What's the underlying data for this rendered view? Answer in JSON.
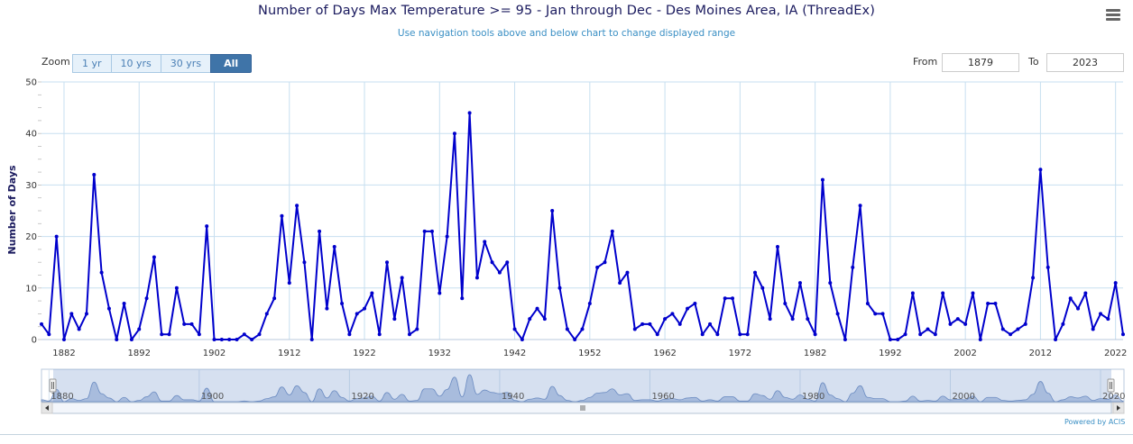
{
  "title": "Number of Days Max Temperature >= 95 - Jan through Dec - Des Moines Area, IA (ThreadEx)",
  "subtitle": "Use navigation tools above and below chart to change displayed range",
  "menu_icon": "hamburger-menu-icon",
  "zoom": {
    "label": "Zoom",
    "buttons": [
      "1 yr",
      "10 yrs",
      "30 yrs",
      "All"
    ],
    "selected": "All"
  },
  "range": {
    "from_label": "From",
    "from_value": "1879",
    "to_label": "To",
    "to_value": "2023"
  },
  "powered_by": "Powered by ACIS",
  "colors": {
    "series": "#0000cc",
    "navigator_fill": "#a9bcdc",
    "grid": "#c7dff0"
  },
  "chart_data": {
    "type": "line",
    "title": "Number of Days Max Temperature >= 95 - Jan through Dec - Des Moines Area, IA (ThreadEx)",
    "ylabel": "Number of Days",
    "xlabel": "",
    "ylim": [
      0,
      50
    ],
    "yticks": [
      "0",
      "10",
      "20",
      "30",
      "40",
      "50"
    ],
    "xlim": [
      1879,
      2023
    ],
    "xticks": [
      "1882",
      "1892",
      "1902",
      "1912",
      "1922",
      "1932",
      "1942",
      "1952",
      "1962",
      "1972",
      "1982",
      "1992",
      "2002",
      "2012",
      "2022"
    ],
    "navigator_ticks": [
      "1880",
      "1900",
      "1920",
      "1940",
      "1960",
      "1980",
      "2000",
      "2020"
    ],
    "grid": true,
    "x": [
      1879,
      1880,
      1881,
      1882,
      1883,
      1884,
      1885,
      1886,
      1887,
      1888,
      1889,
      1890,
      1891,
      1892,
      1893,
      1894,
      1895,
      1896,
      1897,
      1898,
      1899,
      1900,
      1901,
      1902,
      1903,
      1904,
      1905,
      1906,
      1907,
      1908,
      1909,
      1910,
      1911,
      1912,
      1913,
      1914,
      1915,
      1916,
      1917,
      1918,
      1919,
      1920,
      1921,
      1922,
      1923,
      1924,
      1925,
      1926,
      1927,
      1928,
      1929,
      1930,
      1931,
      1932,
      1933,
      1934,
      1935,
      1936,
      1937,
      1938,
      1939,
      1940,
      1941,
      1942,
      1943,
      1944,
      1945,
      1946,
      1947,
      1948,
      1949,
      1950,
      1951,
      1952,
      1953,
      1954,
      1955,
      1956,
      1957,
      1958,
      1959,
      1960,
      1961,
      1962,
      1963,
      1964,
      1965,
      1966,
      1967,
      1968,
      1969,
      1970,
      1971,
      1972,
      1973,
      1974,
      1975,
      1976,
      1977,
      1978,
      1979,
      1980,
      1981,
      1982,
      1983,
      1984,
      1985,
      1986,
      1987,
      1988,
      1989,
      1990,
      1991,
      1992,
      1993,
      1994,
      1995,
      1996,
      1997,
      1998,
      1999,
      2000,
      2001,
      2002,
      2003,
      2004,
      2005,
      2006,
      2007,
      2008,
      2009,
      2010,
      2011,
      2012,
      2013,
      2014,
      2015,
      2016,
      2017,
      2018,
      2019,
      2020,
      2021,
      2022,
      2023
    ],
    "series": [
      {
        "values": [
          3,
          1,
          20,
          0,
          5,
          2,
          5,
          32,
          13,
          6,
          0,
          7,
          0,
          2,
          8,
          16,
          1,
          1,
          10,
          3,
          3,
          1,
          22,
          0,
          0,
          0,
          0,
          1,
          0,
          1,
          5,
          8,
          24,
          11,
          26,
          15,
          0,
          21,
          6,
          18,
          7,
          1,
          5,
          6,
          9,
          1,
          15,
          4,
          12,
          1,
          2,
          21,
          21,
          9,
          20,
          40,
          8,
          44,
          12,
          19,
          15,
          13,
          15,
          2,
          0,
          4,
          6,
          4,
          25,
          10,
          2,
          0,
          2,
          7,
          14,
          15,
          21,
          11,
          13,
          2,
          3,
          3,
          1,
          4,
          5,
          3,
          6,
          7,
          1,
          3,
          1,
          8,
          8,
          1,
          1,
          13,
          10,
          4,
          18,
          7,
          4,
          11,
          4,
          1,
          31,
          11,
          5,
          0,
          14,
          26,
          7,
          5,
          5,
          0,
          0,
          1,
          9,
          1,
          2,
          1,
          9,
          3,
          4,
          3,
          9,
          0,
          7,
          7,
          2,
          1,
          2,
          3,
          12,
          33,
          14,
          0,
          3,
          8,
          6,
          9,
          2,
          5,
          4,
          11,
          1
        ]
      }
    ]
  }
}
